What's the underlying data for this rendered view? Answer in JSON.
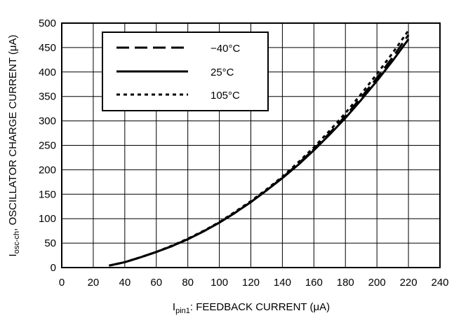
{
  "chart_data": {
    "type": "line",
    "title": "",
    "xlabel": {
      "main": "I",
      "sub": "pin1",
      "rest": ": FEEDBACK CURRENT (μA)"
    },
    "ylabel": {
      "main": "I",
      "sub": "osc-ch",
      "rest": ", OSCILLATOR CHARGE CURRENT (μA)"
    },
    "xlim": [
      0,
      240
    ],
    "ylim": [
      0,
      500
    ],
    "xticks": [
      0,
      20,
      40,
      60,
      80,
      100,
      120,
      140,
      160,
      180,
      200,
      220,
      240
    ],
    "yticks": [
      0,
      50,
      100,
      150,
      200,
      250,
      300,
      350,
      400,
      450,
      500
    ],
    "grid": true,
    "legend_position": "top-left",
    "series": [
      {
        "name": "−40°C",
        "style": "long-dash",
        "x": [
          30,
          40,
          50,
          60,
          70,
          80,
          90,
          100,
          110,
          120,
          130,
          140,
          150,
          160,
          170,
          180,
          190,
          200,
          210,
          220
        ],
        "y": [
          4,
          11,
          21,
          32,
          44,
          58,
          74,
          92,
          112,
          134,
          158,
          184,
          212,
          242,
          275,
          310,
          348,
          388,
          430,
          476
        ]
      },
      {
        "name": "25°C",
        "style": "solid",
        "x": [
          30,
          40,
          50,
          60,
          70,
          80,
          90,
          100,
          110,
          120,
          130,
          140,
          150,
          160,
          170,
          180,
          190,
          200,
          210,
          220
        ],
        "y": [
          4,
          11,
          21,
          32,
          44,
          58,
          74,
          92,
          112,
          134,
          158,
          183,
          210,
          240,
          272,
          306,
          343,
          382,
          423,
          467
        ]
      },
      {
        "name": "105°C",
        "style": "short-dash",
        "x": [
          30,
          40,
          50,
          60,
          70,
          80,
          90,
          100,
          110,
          120,
          130,
          140,
          150,
          160,
          170,
          180,
          190,
          200,
          210,
          220
        ],
        "y": [
          4,
          11,
          21,
          32,
          45,
          59,
          75,
          93,
          114,
          136,
          160,
          186,
          215,
          246,
          280,
          316,
          355,
          396,
          439,
          485
        ]
      }
    ]
  }
}
